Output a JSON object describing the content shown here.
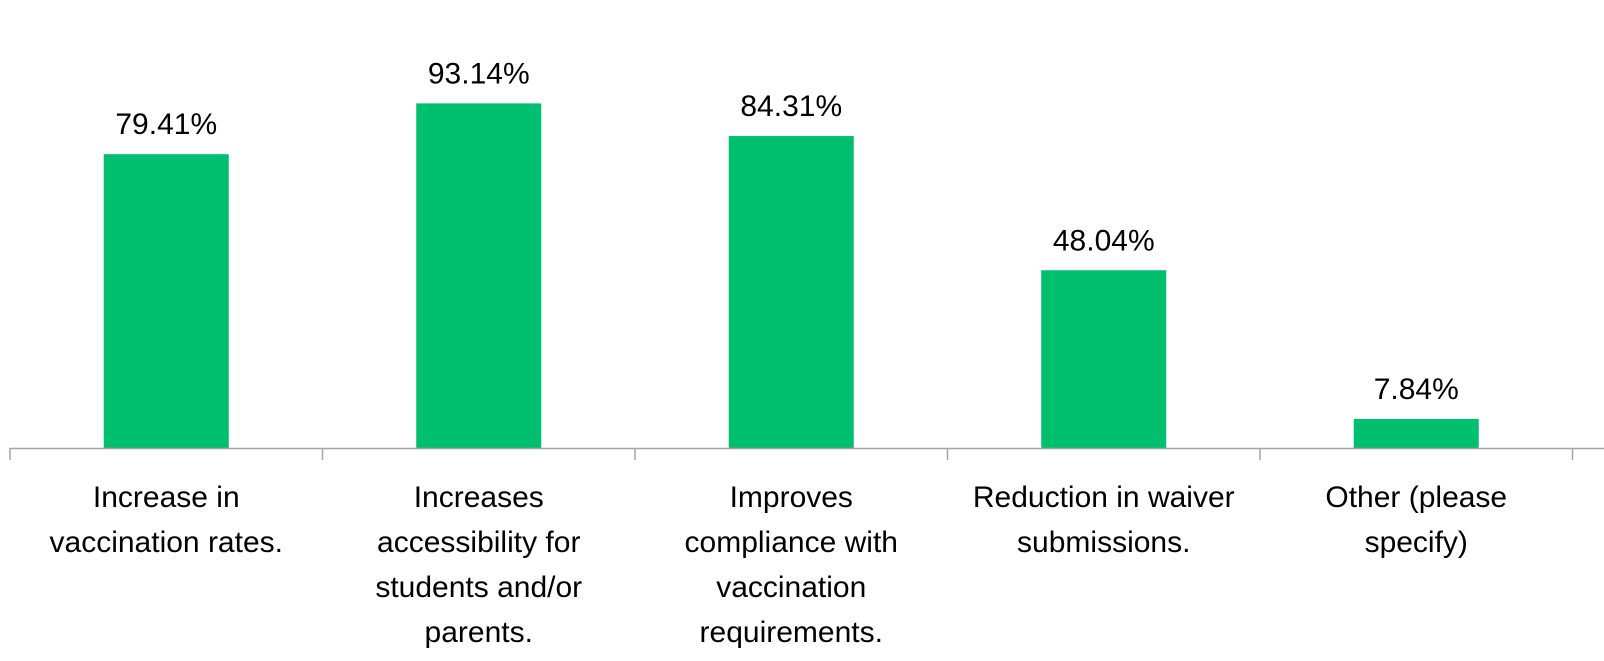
{
  "colors": {
    "bar": "#00BF6F",
    "axis": "#a6a6a6",
    "text": "#000000"
  },
  "chart_data": {
    "type": "bar",
    "title": "",
    "xlabel": "",
    "ylabel": "",
    "ylim": [
      0,
      100
    ],
    "grid": false,
    "legend": "none",
    "categories": [
      "Increase in vaccination rates.",
      "Increases accessibility for students and/or parents.",
      "Improves compliance with vaccination requirements.",
      "Reduction in waiver submissions.",
      "Other (please specify)"
    ],
    "category_lines": [
      [
        "Increase in",
        "vaccination rates."
      ],
      [
        "Increases",
        "accessibility for",
        "students and/or",
        "parents."
      ],
      [
        "Improves",
        "compliance with",
        "vaccination",
        "requirements."
      ],
      [
        "Reduction in waiver",
        "submissions."
      ],
      [
        "Other (please",
        "specify)"
      ]
    ],
    "values": [
      79.41,
      93.14,
      84.31,
      48.04,
      7.84
    ],
    "data_labels": [
      "79.41%",
      "93.14%",
      "84.31%",
      "48.04%",
      "7.84%"
    ]
  }
}
